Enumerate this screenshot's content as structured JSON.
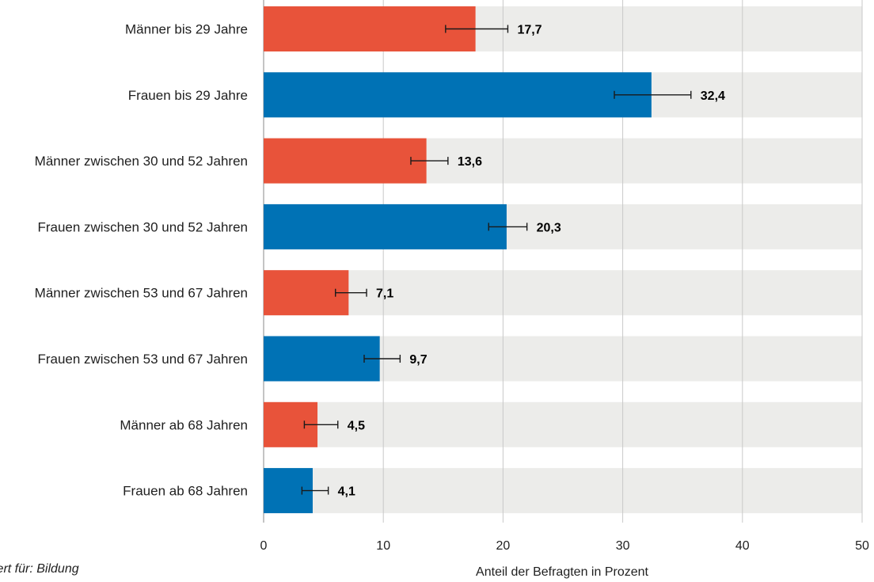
{
  "chart_data": {
    "type": "bar",
    "orientation": "horizontal",
    "categories": [
      "Männer bis 29 Jahre",
      "Frauen bis 29 Jahre",
      "Männer zwischen 30 und 52 Jahren",
      "Frauen zwischen 30 und 52 Jahren",
      "Männer zwischen 53 und 67 Jahren",
      "Frauen zwischen 53 und 67 Jahren",
      "Männer ab 68 Jahren",
      "Frauen ab 68 Jahren"
    ],
    "values": [
      17.7,
      32.4,
      13.6,
      20.3,
      7.1,
      9.7,
      4.5,
      4.1
    ],
    "value_labels": [
      "17,7",
      "32,4",
      "13,6",
      "20,3",
      "7,1",
      "9,7",
      "4,5",
      "4,1"
    ],
    "error_low": [
      15.2,
      29.3,
      12.3,
      18.8,
      6.0,
      8.4,
      3.4,
      3.2
    ],
    "error_high": [
      20.4,
      35.7,
      15.4,
      22.0,
      8.6,
      11.4,
      6.2,
      5.4
    ],
    "bar_colors": [
      "#e8533a",
      "#0072b5",
      "#e8533a",
      "#0072b5",
      "#e8533a",
      "#0072b5",
      "#e8533a",
      "#0072b5"
    ],
    "background_band_color": "#ececea",
    "gridline_color": "#c9c9c9",
    "xlim": [
      0,
      50
    ],
    "xticks": [
      0,
      10,
      20,
      30,
      40,
      50
    ],
    "xlabel": "Anteil der Befragten in Prozent",
    "grid": true
  },
  "footnote": "iert für: Bildung"
}
